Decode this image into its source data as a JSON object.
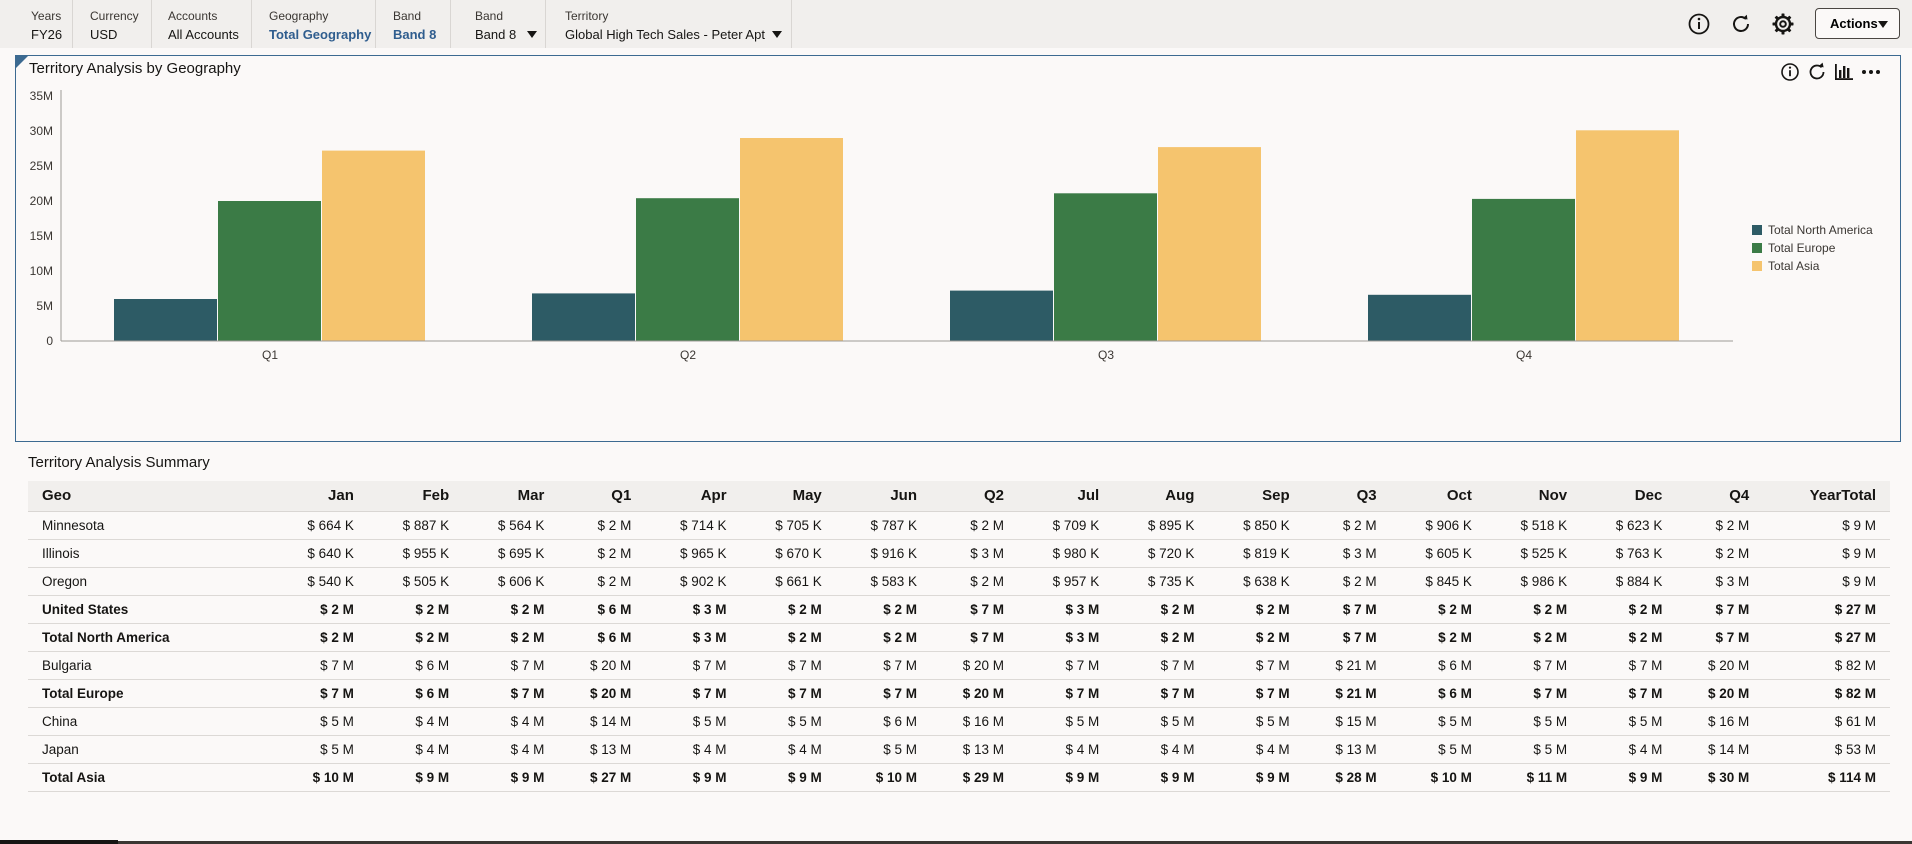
{
  "pov": [
    {
      "label": "Years",
      "value": "FY26",
      "link": false,
      "dropdown": false
    },
    {
      "label": "Currency",
      "value": "USD",
      "link": false,
      "dropdown": false
    },
    {
      "label": "Accounts",
      "value": "All Accounts",
      "link": false,
      "dropdown": false
    },
    {
      "label": "Geography",
      "value": "Total Geography",
      "link": true,
      "dropdown": false
    },
    {
      "label": "Band",
      "value": "Band 8",
      "link": true,
      "dropdown": false
    },
    {
      "label": "Band",
      "value": "Band 8",
      "link": false,
      "dropdown": true
    },
    {
      "label": "Territory",
      "value": "Global High Tech Sales - Peter Apt",
      "link": false,
      "dropdown": true
    }
  ],
  "header": {
    "actions_label": "Actions"
  },
  "chart_panel": {
    "title": "Territory Analysis by Geography"
  },
  "chart_data": {
    "type": "bar",
    "categories": [
      "Q1",
      "Q2",
      "Q3",
      "Q4"
    ],
    "series": [
      {
        "name": "Total North America",
        "color": "#2d5b65",
        "values": [
          6.0,
          6.8,
          7.2,
          6.6
        ]
      },
      {
        "name": "Total Europe",
        "color": "#3b7b46",
        "values": [
          20.0,
          20.4,
          21.1,
          20.3
        ]
      },
      {
        "name": "Total Asia",
        "color": "#f5c46e",
        "values": [
          27.2,
          29.0,
          27.7,
          30.1
        ]
      }
    ],
    "y_ticks": [
      "0",
      "5M",
      "10M",
      "15M",
      "20M",
      "25M",
      "30M",
      "35M"
    ],
    "ylim": [
      0,
      35
    ],
    "legend_position": "right",
    "grid": false
  },
  "summary": {
    "title": "Territory Analysis Summary",
    "columns": [
      "Geo",
      "Jan",
      "Feb",
      "Mar",
      "Q1",
      "Apr",
      "May",
      "Jun",
      "Q2",
      "Jul",
      "Aug",
      "Sep",
      "Q3",
      "Oct",
      "Nov",
      "Dec",
      "Q4",
      "YearTotal"
    ],
    "rows": [
      {
        "bold": false,
        "cells": [
          "Minnesota",
          "$ 664 K",
          "$ 887 K",
          "$ 564 K",
          "$ 2 M",
          "$ 714 K",
          "$ 705 K",
          "$ 787 K",
          "$ 2 M",
          "$ 709 K",
          "$ 895 K",
          "$ 850 K",
          "$ 2 M",
          "$ 906 K",
          "$ 518 K",
          "$ 623 K",
          "$ 2 M",
          "$ 9 M"
        ]
      },
      {
        "bold": false,
        "cells": [
          "Illinois",
          "$ 640 K",
          "$ 955 K",
          "$ 695 K",
          "$ 2 M",
          "$ 965 K",
          "$ 670 K",
          "$ 916 K",
          "$ 3 M",
          "$ 980 K",
          "$ 720 K",
          "$ 819 K",
          "$ 3 M",
          "$ 605 K",
          "$ 525 K",
          "$ 763 K",
          "$ 2 M",
          "$ 9 M"
        ]
      },
      {
        "bold": false,
        "cells": [
          "Oregon",
          "$ 540 K",
          "$ 505 K",
          "$ 606 K",
          "$ 2 M",
          "$ 902 K",
          "$ 661 K",
          "$ 583 K",
          "$ 2 M",
          "$ 957 K",
          "$ 735 K",
          "$ 638 K",
          "$ 2 M",
          "$ 845 K",
          "$ 986 K",
          "$ 884 K",
          "$ 3 M",
          "$ 9 M"
        ]
      },
      {
        "bold": true,
        "cells": [
          "United States",
          "$ 2 M",
          "$ 2 M",
          "$ 2 M",
          "$ 6 M",
          "$ 3 M",
          "$ 2 M",
          "$ 2 M",
          "$ 7 M",
          "$ 3 M",
          "$ 2 M",
          "$ 2 M",
          "$ 7 M",
          "$ 2 M",
          "$ 2 M",
          "$ 2 M",
          "$ 7 M",
          "$ 27 M"
        ]
      },
      {
        "bold": true,
        "cells": [
          "Total North America",
          "$ 2 M",
          "$ 2 M",
          "$ 2 M",
          "$ 6 M",
          "$ 3 M",
          "$ 2 M",
          "$ 2 M",
          "$ 7 M",
          "$ 3 M",
          "$ 2 M",
          "$ 2 M",
          "$ 7 M",
          "$ 2 M",
          "$ 2 M",
          "$ 2 M",
          "$ 7 M",
          "$ 27 M"
        ]
      },
      {
        "bold": false,
        "cells": [
          "Bulgaria",
          "$ 7 M",
          "$ 6 M",
          "$ 7 M",
          "$ 20 M",
          "$ 7 M",
          "$ 7 M",
          "$ 7 M",
          "$ 20 M",
          "$ 7 M",
          "$ 7 M",
          "$ 7 M",
          "$ 21 M",
          "$ 6 M",
          "$ 7 M",
          "$ 7 M",
          "$ 20 M",
          "$ 82 M"
        ]
      },
      {
        "bold": true,
        "cells": [
          "Total Europe",
          "$ 7 M",
          "$ 6 M",
          "$ 7 M",
          "$ 20 M",
          "$ 7 M",
          "$ 7 M",
          "$ 7 M",
          "$ 20 M",
          "$ 7 M",
          "$ 7 M",
          "$ 7 M",
          "$ 21 M",
          "$ 6 M",
          "$ 7 M",
          "$ 7 M",
          "$ 20 M",
          "$ 82 M"
        ]
      },
      {
        "bold": false,
        "cells": [
          "China",
          "$ 5 M",
          "$ 4 M",
          "$ 4 M",
          "$ 14 M",
          "$ 5 M",
          "$ 5 M",
          "$ 6 M",
          "$ 16 M",
          "$ 5 M",
          "$ 5 M",
          "$ 5 M",
          "$ 15 M",
          "$ 5 M",
          "$ 5 M",
          "$ 5 M",
          "$ 16 M",
          "$ 61 M"
        ]
      },
      {
        "bold": false,
        "cells": [
          "Japan",
          "$ 5 M",
          "$ 4 M",
          "$ 4 M",
          "$ 13 M",
          "$ 4 M",
          "$ 4 M",
          "$ 5 M",
          "$ 13 M",
          "$ 4 M",
          "$ 4 M",
          "$ 4 M",
          "$ 13 M",
          "$ 5 M",
          "$ 5 M",
          "$ 4 M",
          "$ 14 M",
          "$ 53 M"
        ]
      },
      {
        "bold": true,
        "cells": [
          "Total Asia",
          "$ 10 M",
          "$ 9 M",
          "$ 9 M",
          "$ 27 M",
          "$ 9 M",
          "$ 9 M",
          "$ 10 M",
          "$ 29 M",
          "$ 9 M",
          "$ 9 M",
          "$ 9 M",
          "$ 28 M",
          "$ 10 M",
          "$ 11 M",
          "$ 9 M",
          "$ 30 M",
          "$ 114 M"
        ]
      }
    ]
  }
}
